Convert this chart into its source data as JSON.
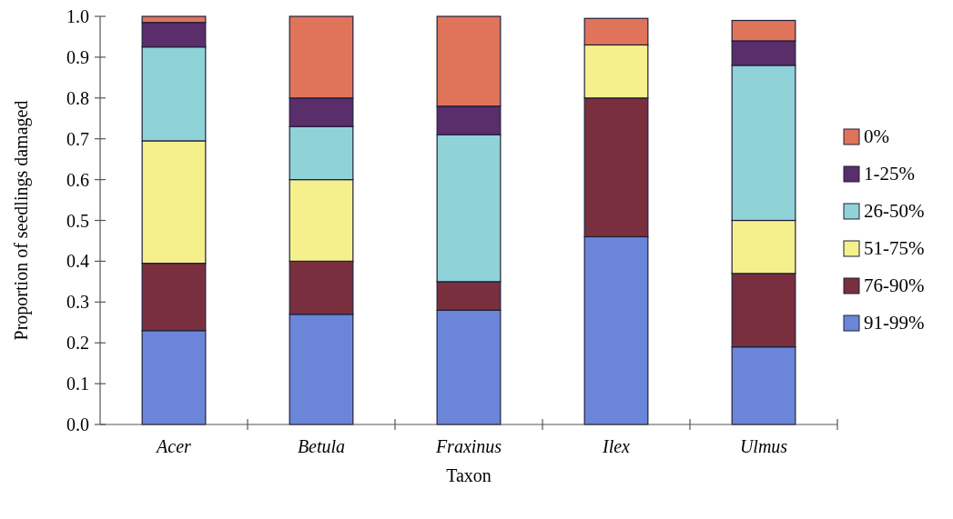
{
  "chart_data": {
    "type": "bar",
    "stacked": true,
    "xlabel": "Taxon",
    "ylabel": "Proportion of seedlings damaged",
    "categories": [
      "Acer",
      "Betula",
      "Fraxinus",
      "Ilex",
      "Ulmus"
    ],
    "series": [
      {
        "name": "91-99%",
        "color": "#6b86d9",
        "values": [
          0.23,
          0.27,
          0.28,
          0.46,
          0.19
        ]
      },
      {
        "name": "76-90%",
        "color": "#7a2f3f",
        "values": [
          0.165,
          0.13,
          0.07,
          0.34,
          0.18
        ]
      },
      {
        "name": "51-75%",
        "color": "#f5f08c",
        "values": [
          0.3,
          0.2,
          0,
          0.13,
          0.13
        ]
      },
      {
        "name": "26-50%",
        "color": "#8fd3d8",
        "values": [
          0.23,
          0.13,
          0.36,
          0,
          0.38
        ]
      },
      {
        "name": "1-25%",
        "color": "#5a2d6b",
        "values": [
          0.06,
          0.07,
          0.07,
          0,
          0.06
        ]
      },
      {
        "name": "0%",
        "color": "#e0745a",
        "values": [
          0.015,
          0.2,
          0.22,
          0.065,
          0.05
        ]
      }
    ],
    "ylim": [
      0,
      1
    ],
    "yticks": [
      {
        "value": 0,
        "label": "0.0"
      },
      {
        "value": 0.1,
        "label": "0.1"
      },
      {
        "value": 0.2,
        "label": "0.2"
      },
      {
        "value": 0.3,
        "label": "0.3"
      },
      {
        "value": 0.4,
        "label": "0.4"
      },
      {
        "value": 0.5,
        "label": "0.5"
      },
      {
        "value": 0.6,
        "label": "0.6"
      },
      {
        "value": 0.7,
        "label": "0.7"
      },
      {
        "value": 0.8,
        "label": "0.8"
      },
      {
        "value": 0.9,
        "label": "0.9"
      },
      {
        "value": 1,
        "label": "1.0"
      }
    ],
    "legend": "right"
  }
}
